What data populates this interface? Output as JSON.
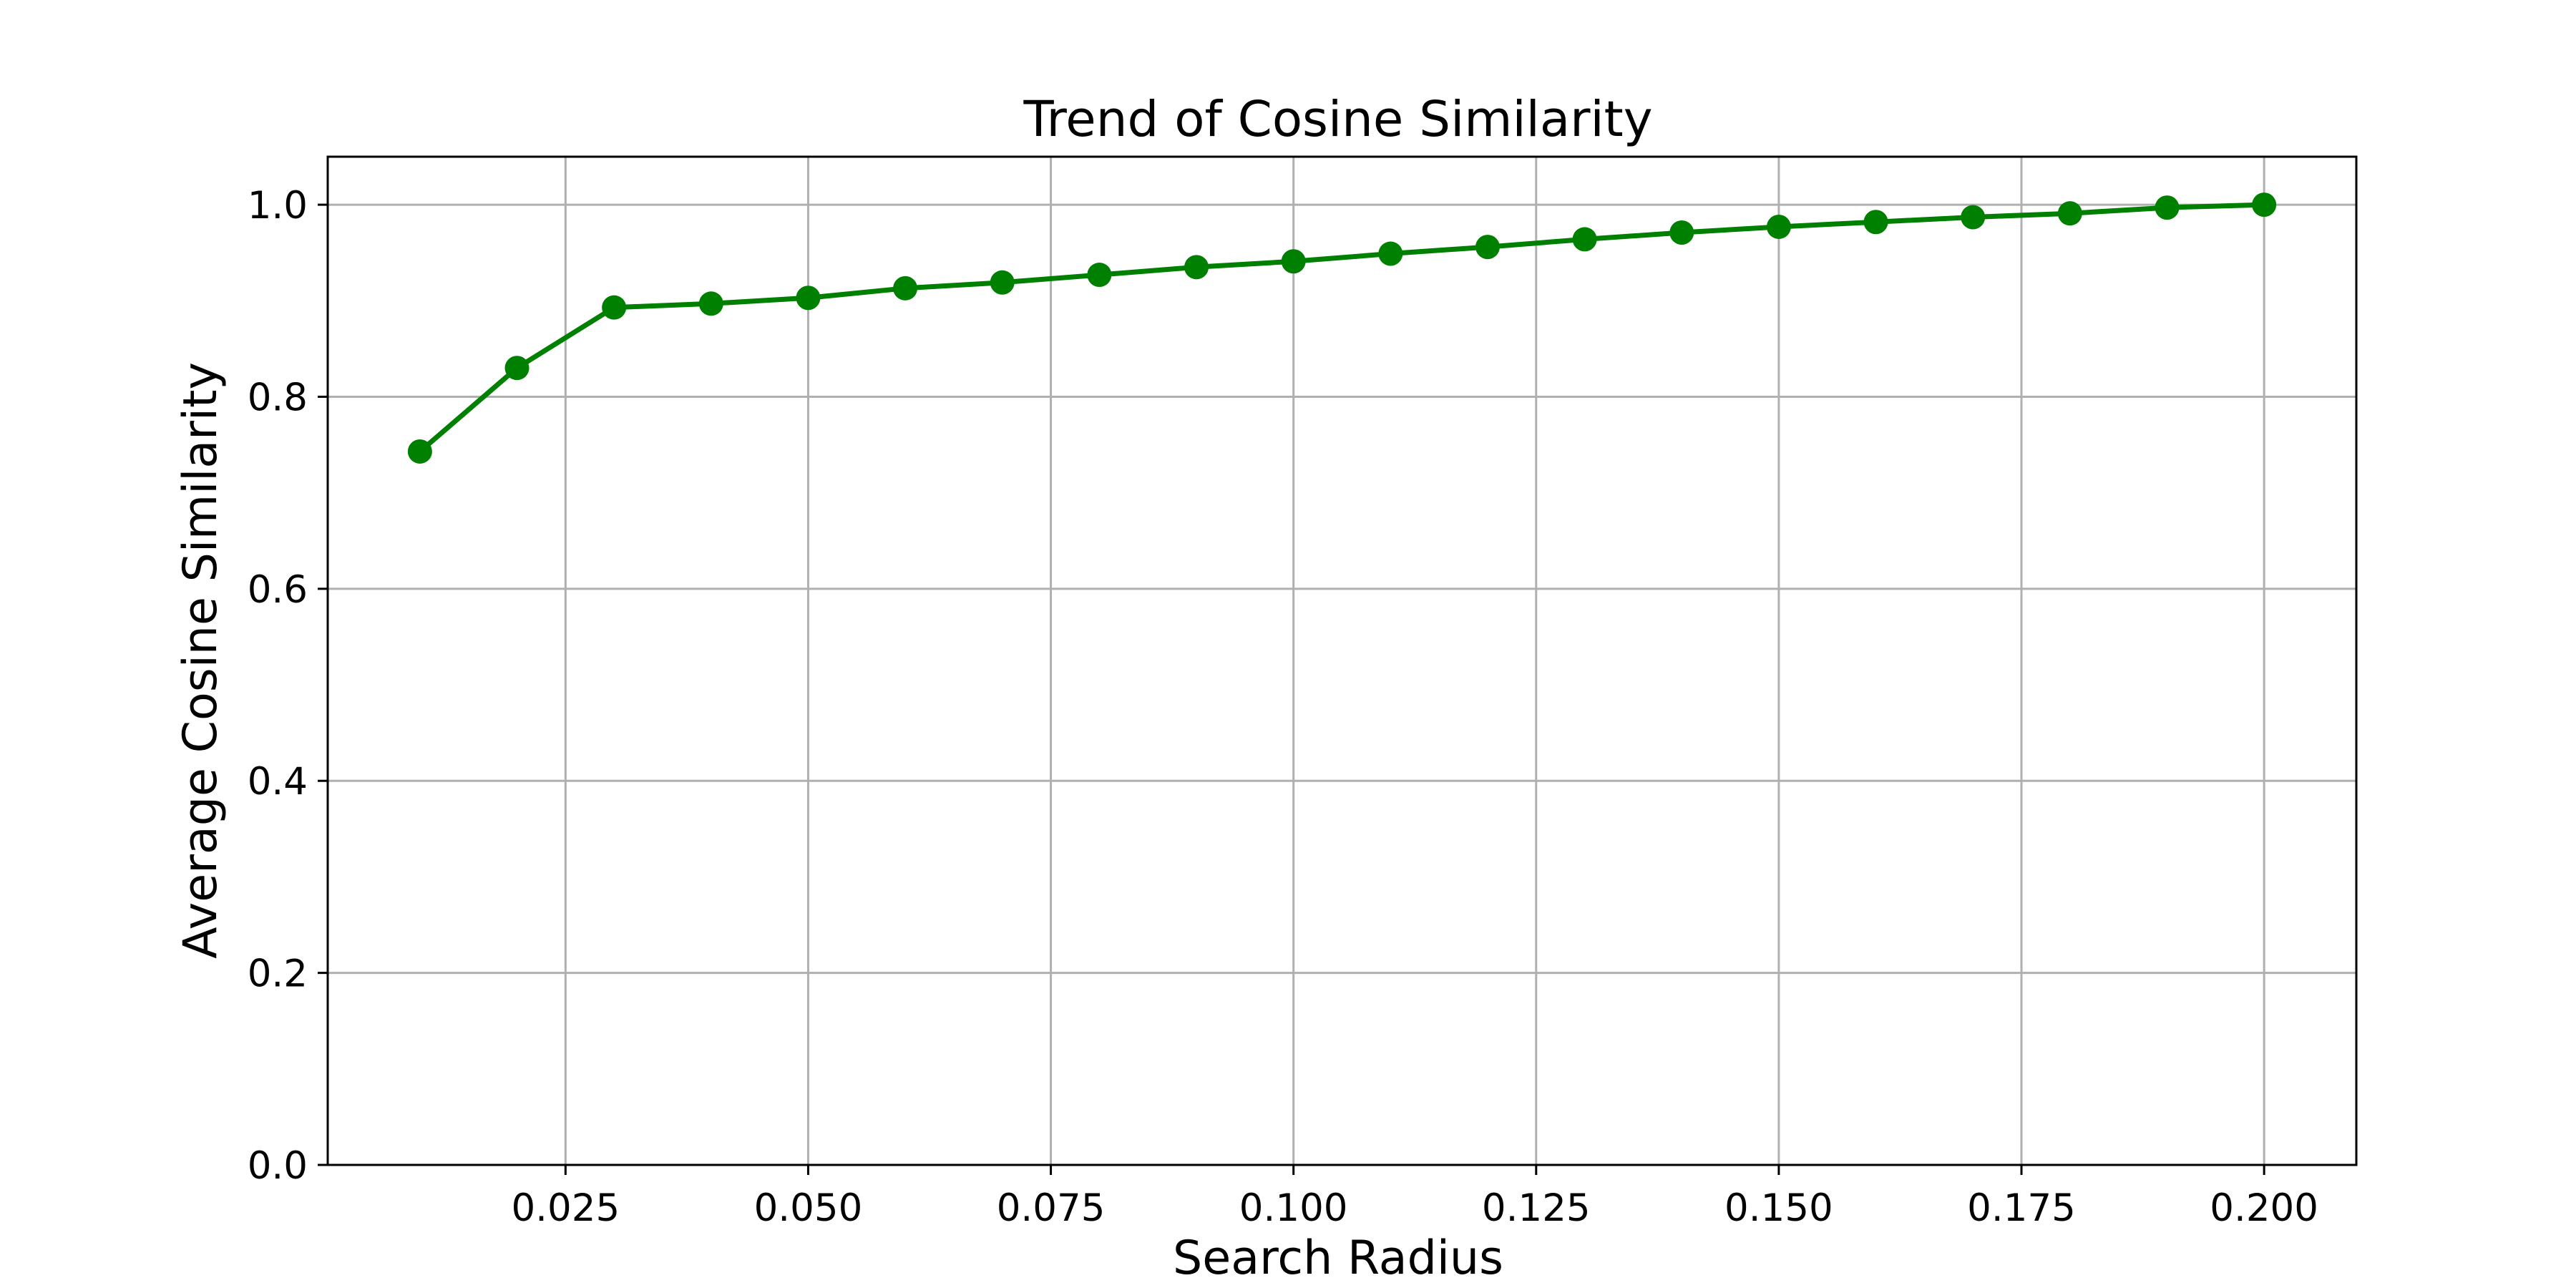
{
  "chart_data": {
    "type": "line",
    "title": "Trend of Cosine Similarity",
    "xlabel": "Search Radius",
    "ylabel": "Average Cosine Similarity",
    "xlim": [
      0.0005,
      0.2095
    ],
    "ylim": [
      0.0,
      1.05
    ],
    "x_ticks": [
      0.025,
      0.05,
      0.075,
      0.1,
      0.125,
      0.15,
      0.175,
      0.2
    ],
    "x_tick_labels": [
      "0.025",
      "0.050",
      "0.075",
      "0.100",
      "0.125",
      "0.150",
      "0.175",
      "0.200"
    ],
    "y_ticks": [
      0.0,
      0.2,
      0.4,
      0.6,
      0.8,
      1.0
    ],
    "y_tick_labels": [
      "0.0",
      "0.2",
      "0.4",
      "0.6",
      "0.8",
      "1.0"
    ],
    "grid": true,
    "legend": "none",
    "color": "#008000",
    "marker": "circle",
    "series": [
      {
        "x": [
          0.01,
          0.02,
          0.03,
          0.04,
          0.05,
          0.06,
          0.07,
          0.08,
          0.09,
          0.1,
          0.11,
          0.12,
          0.13,
          0.14,
          0.15,
          0.16,
          0.17,
          0.18,
          0.19,
          0.2
        ],
        "values": [
          0.743,
          0.83,
          0.893,
          0.897,
          0.903,
          0.913,
          0.919,
          0.927,
          0.935,
          0.941,
          0.949,
          0.956,
          0.964,
          0.971,
          0.977,
          0.982,
          0.987,
          0.991,
          0.997,
          1.0
        ]
      }
    ]
  }
}
